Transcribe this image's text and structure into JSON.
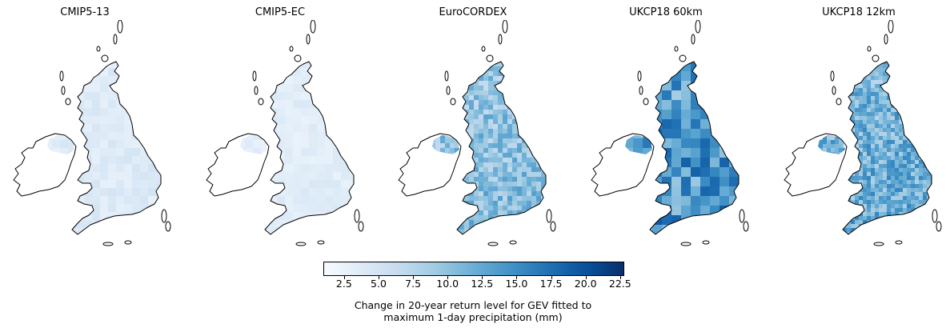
{
  "panels": [
    {
      "title": "CMIP5-13",
      "intensity": 0.12
    },
    {
      "title": "CMIP5-EC",
      "intensity": 0.1
    },
    {
      "title": "EuroCORDEX",
      "intensity": 0.38
    },
    {
      "title": "UKCP18 60km",
      "intensity": 0.55
    },
    {
      "title": "UKCP18 12km",
      "intensity": 0.45
    }
  ],
  "colorbar": {
    "min": 1.0,
    "max": 22.8,
    "ticks": [
      "2.5",
      "5.0",
      "7.5",
      "10.0",
      "12.5",
      "15.0",
      "17.5",
      "20.0",
      "22.5"
    ],
    "tick_values": [
      2.5,
      5.0,
      7.5,
      10.0,
      12.5,
      15.0,
      17.5,
      20.0,
      22.5
    ],
    "label_line1": "Change in 20-year return level for GEV fitted to",
    "label_line2": "maximum 1-day precipitation (mm)",
    "colormap": [
      "#f7fbff",
      "#deebf7",
      "#c6dbef",
      "#9ecae1",
      "#6baed6",
      "#4292c6",
      "#2171b5",
      "#08519c",
      "#08306b"
    ]
  }
}
